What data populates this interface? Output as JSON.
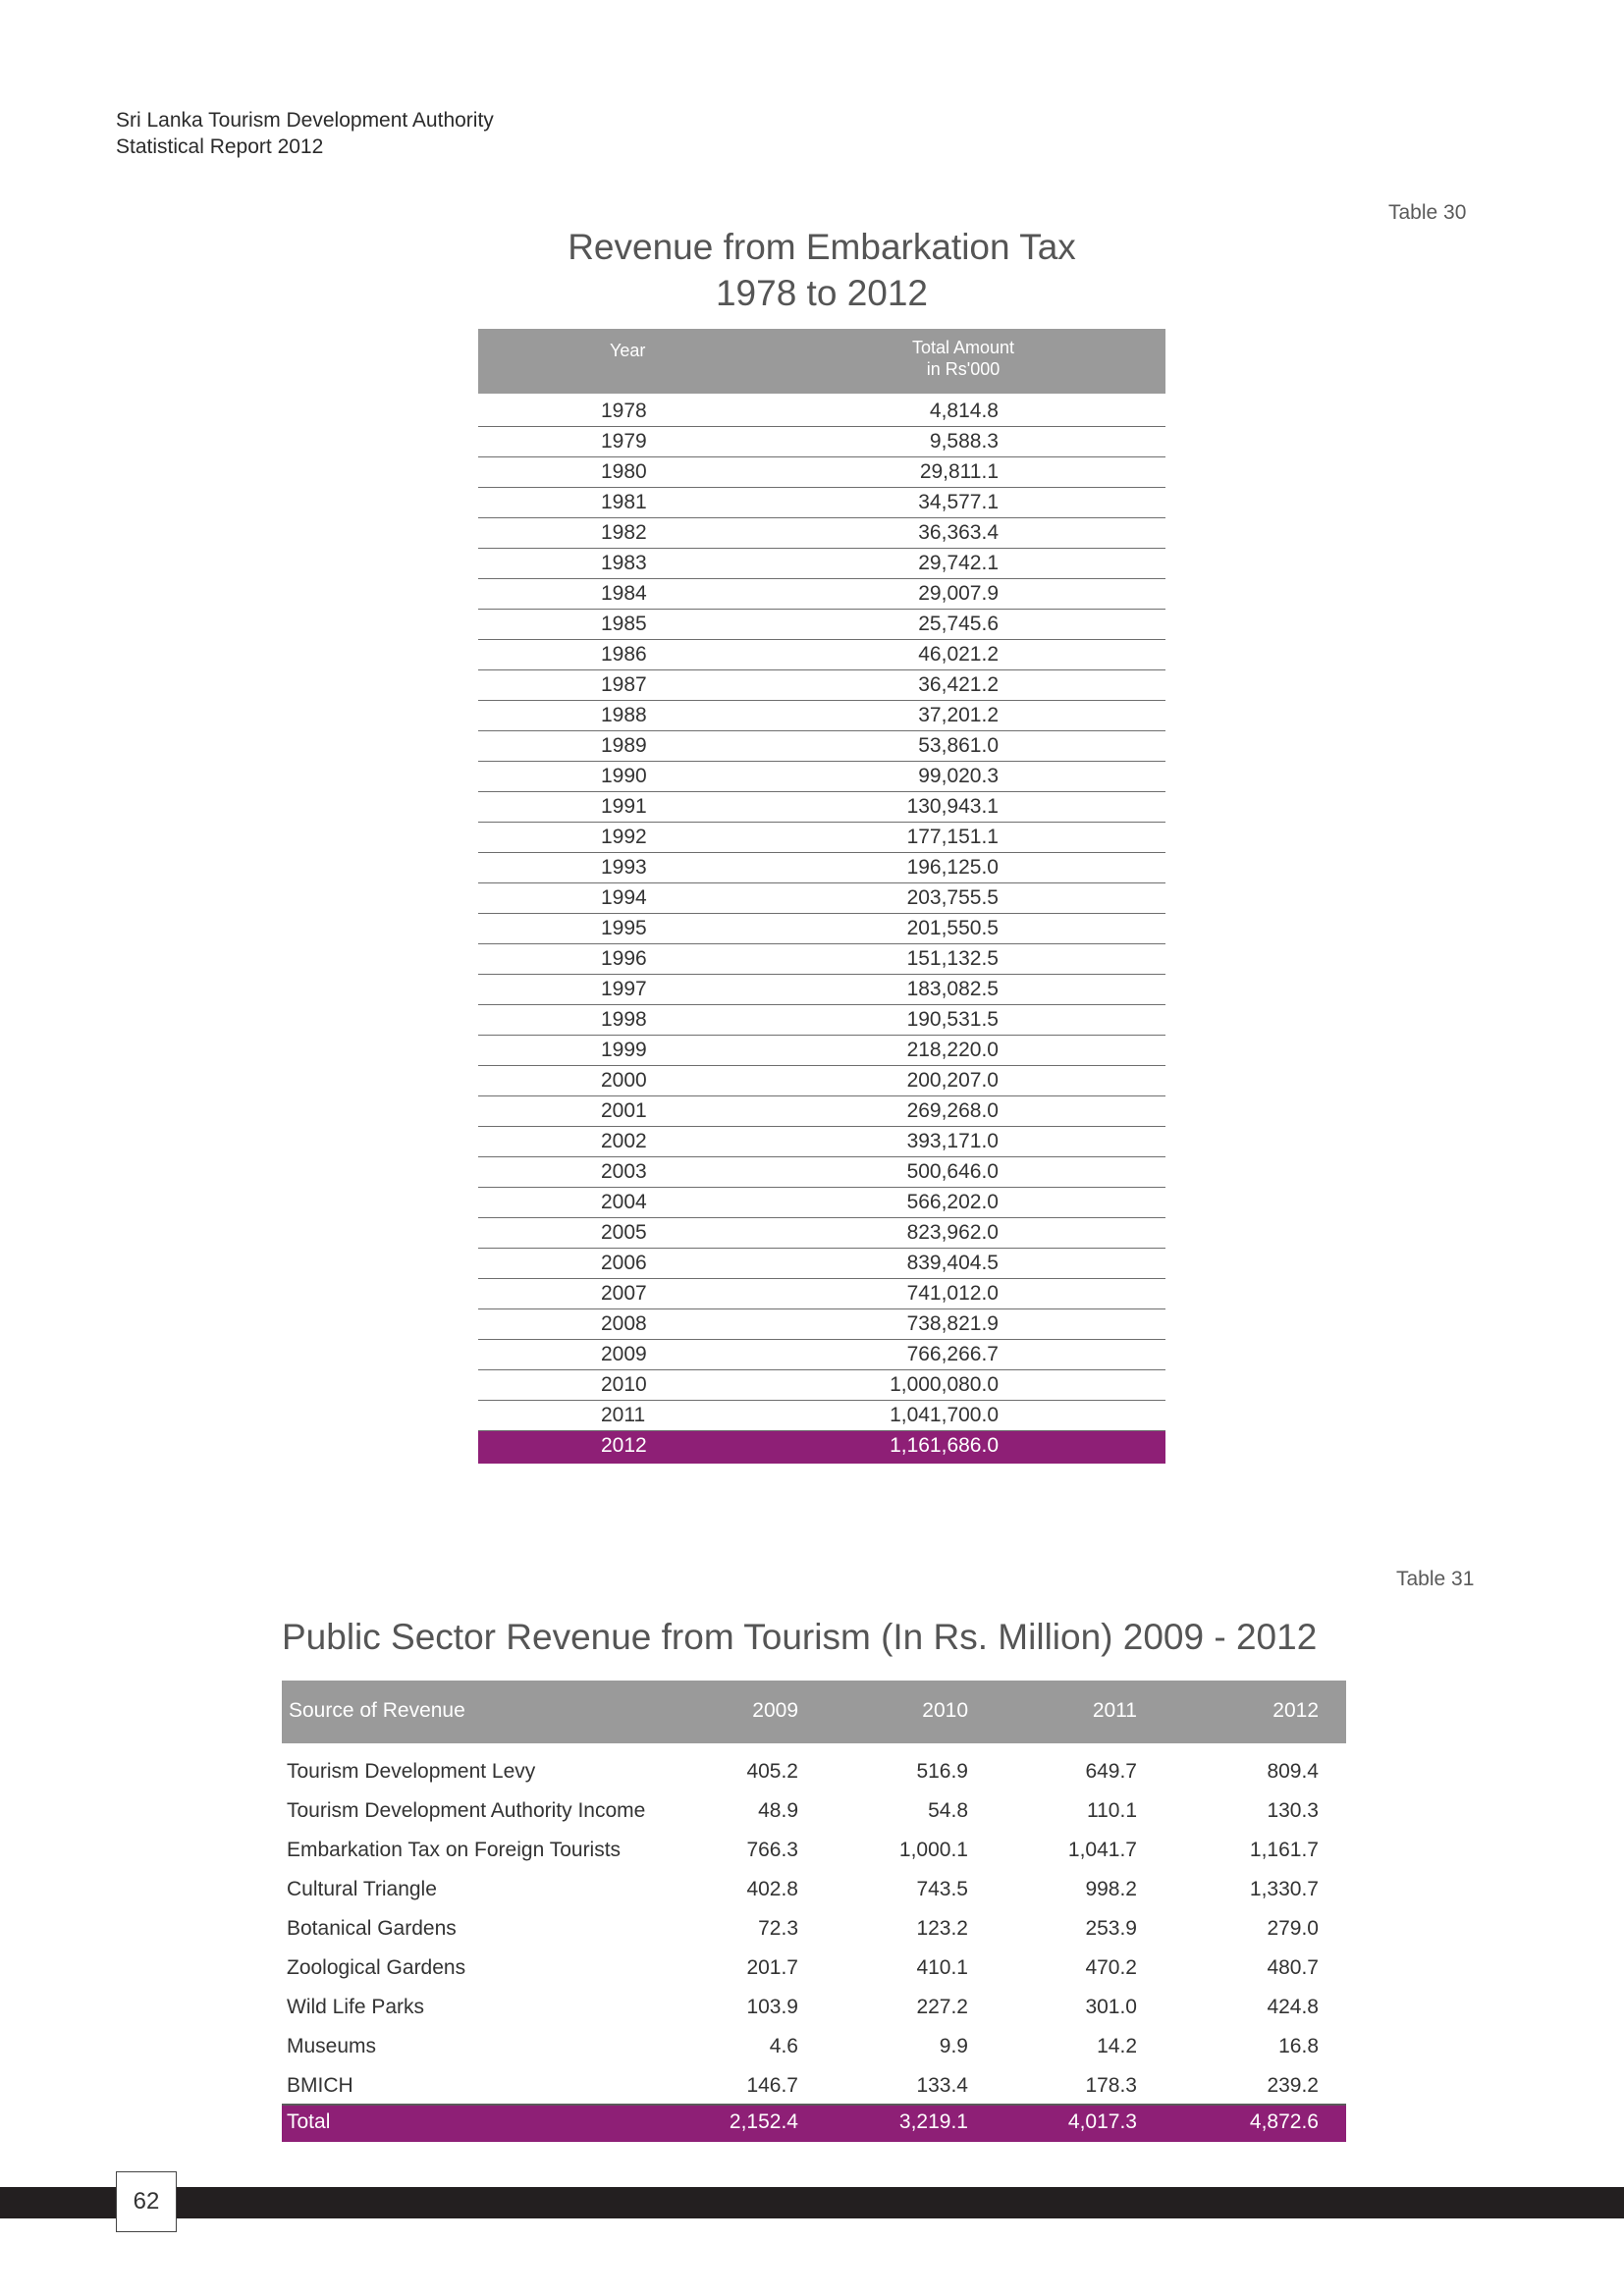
{
  "header": {
    "line1": "Sri Lanka Tourism Development Authority",
    "line2": "Statistical Report 2012"
  },
  "table30": {
    "label": "Table 30",
    "title_line1": "Revenue from Embarkation Tax",
    "title_line2": "1978 to 2012",
    "col_year": "Year",
    "col_amount_line1": "Total Amount",
    "col_amount_line2": "in Rs'000",
    "rows": [
      {
        "year": "1978",
        "amount": "4,814.8"
      },
      {
        "year": "1979",
        "amount": "9,588.3"
      },
      {
        "year": "1980",
        "amount": "29,811.1"
      },
      {
        "year": "1981",
        "amount": "34,577.1"
      },
      {
        "year": "1982",
        "amount": "36,363.4"
      },
      {
        "year": "1983",
        "amount": "29,742.1"
      },
      {
        "year": "1984",
        "amount": "29,007.9"
      },
      {
        "year": "1985",
        "amount": "25,745.6"
      },
      {
        "year": "1986",
        "amount": "46,021.2"
      },
      {
        "year": "1987",
        "amount": "36,421.2"
      },
      {
        "year": "1988",
        "amount": "37,201.2"
      },
      {
        "year": "1989",
        "amount": "53,861.0"
      },
      {
        "year": "1990",
        "amount": "99,020.3"
      },
      {
        "year": "1991",
        "amount": "130,943.1"
      },
      {
        "year": "1992",
        "amount": "177,151.1"
      },
      {
        "year": "1993",
        "amount": "196,125.0"
      },
      {
        "year": "1994",
        "amount": "203,755.5"
      },
      {
        "year": "1995",
        "amount": "201,550.5"
      },
      {
        "year": "1996",
        "amount": "151,132.5"
      },
      {
        "year": "1997",
        "amount": "183,082.5"
      },
      {
        "year": "1998",
        "amount": "190,531.5"
      },
      {
        "year": "1999",
        "amount": "218,220.0"
      },
      {
        "year": "2000",
        "amount": "200,207.0"
      },
      {
        "year": "2001",
        "amount": "269,268.0"
      },
      {
        "year": "2002",
        "amount": "393,171.0"
      },
      {
        "year": "2003",
        "amount": "500,646.0"
      },
      {
        "year": "2004",
        "amount": "566,202.0"
      },
      {
        "year": "2005",
        "amount": "823,962.0"
      },
      {
        "year": "2006",
        "amount": "839,404.5"
      },
      {
        "year": "2007",
        "amount": "741,012.0"
      },
      {
        "year": "2008",
        "amount": "738,821.9"
      },
      {
        "year": "2009",
        "amount": "766,266.7"
      },
      {
        "year": "2010",
        "amount": "1,000,080.0"
      },
      {
        "year": "2011",
        "amount": "1,041,700.0"
      },
      {
        "year": "2012",
        "amount": "1,161,686.0"
      }
    ],
    "highlight_color": "#8e1f76"
  },
  "table31": {
    "label": "Table 31",
    "title": "Public Sector Revenue from Tourism (In Rs. Million) 2009 - 2012",
    "headers": [
      "Source of Revenue",
      "2009",
      "2010",
      "2011",
      "2012"
    ],
    "rows": [
      [
        "Tourism Development Levy",
        "405.2",
        "516.9",
        "649.7",
        "809.4"
      ],
      [
        "Tourism Development Authority Income",
        "48.9",
        "54.8",
        "110.1",
        "130.3"
      ],
      [
        "Embarkation Tax on Foreign Tourists",
        "766.3",
        "1,000.1",
        "1,041.7",
        "1,161.7"
      ],
      [
        "Cultural Triangle",
        "402.8",
        "743.5",
        "998.2",
        "1,330.7"
      ],
      [
        "Botanical Gardens",
        "72.3",
        "123.2",
        "253.9",
        "279.0"
      ],
      [
        "Zoological Gardens",
        "201.7",
        "410.1",
        "470.2",
        "480.7"
      ],
      [
        "Wild Life Parks",
        "103.9",
        "227.2",
        "301.0",
        "424.8"
      ],
      [
        "Museums",
        "4.6",
        "9.9",
        "14.2",
        "16.8"
      ],
      [
        "BMICH",
        "146.7",
        "133.4",
        "178.3",
        "239.2"
      ]
    ],
    "total": [
      "Total",
      "2,152.4",
      "3,219.1",
      "4,017.3",
      "4,872.6"
    ]
  },
  "footer": {
    "page_number": "62"
  }
}
